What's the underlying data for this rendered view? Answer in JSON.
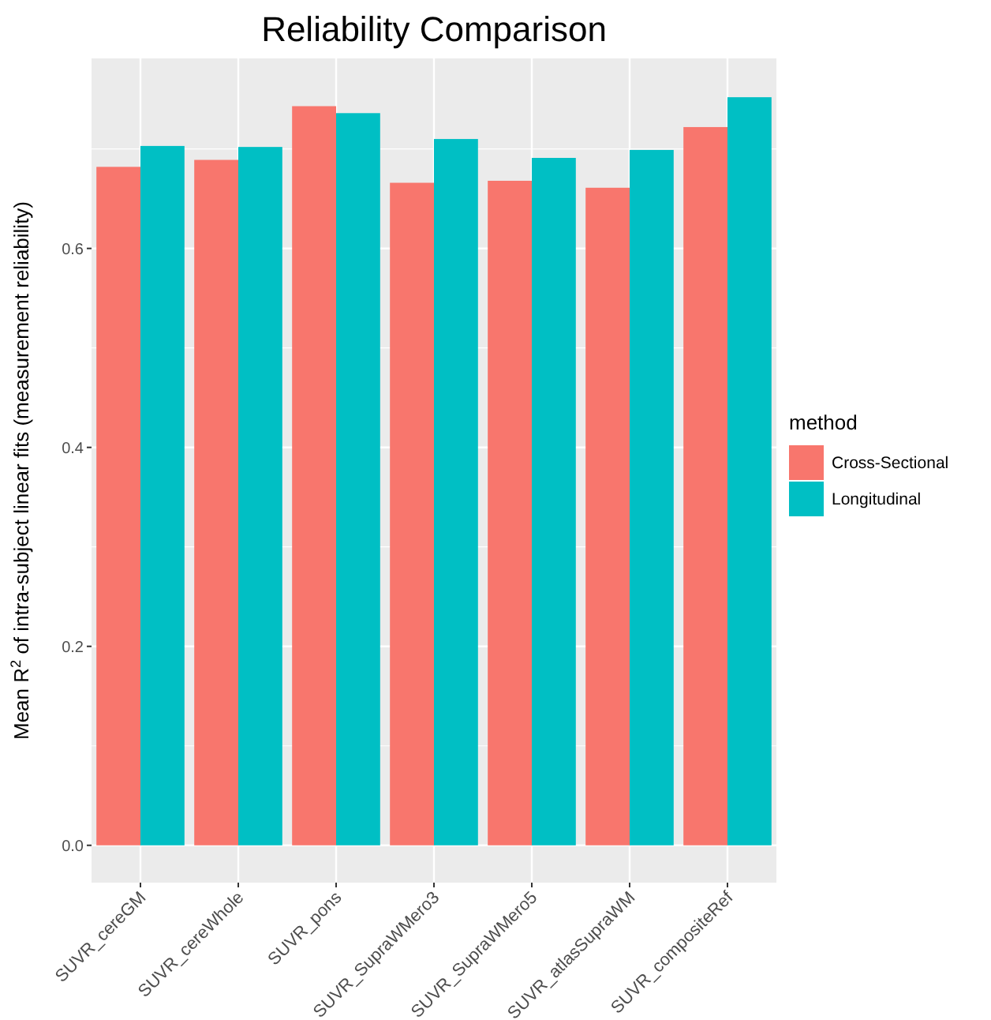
{
  "chart_data": {
    "type": "bar",
    "title": "Reliability Comparison",
    "ylabel": "Mean R$^{2}$ of intra-subject linear fits (measurement reliability)",
    "legend_title": "method",
    "categories": [
      "SUVR_cereGM",
      "SUVR_cereWhole",
      "SUVR_pons",
      "SUVR_SupraWMero3",
      "SUVR_SupraWMero5",
      "SUVR_atlasSupraWM",
      "SUVR_compositeRef"
    ],
    "series": [
      {
        "name": "Cross-Sectional",
        "color": "#f8766d",
        "values": [
          0.682,
          0.689,
          0.743,
          0.666,
          0.668,
          0.661,
          0.722
        ]
      },
      {
        "name": "Longitudinal",
        "color": "#00bfc4",
        "values": [
          0.703,
          0.702,
          0.736,
          0.71,
          0.691,
          0.699,
          0.752
        ]
      }
    ],
    "ylim": [
      -0.0375,
      0.791
    ],
    "yticks": [
      {
        "value": 0,
        "label": "0.0"
      },
      0.2,
      0.4,
      0.6
    ],
    "grid": true,
    "legend": "right"
  }
}
